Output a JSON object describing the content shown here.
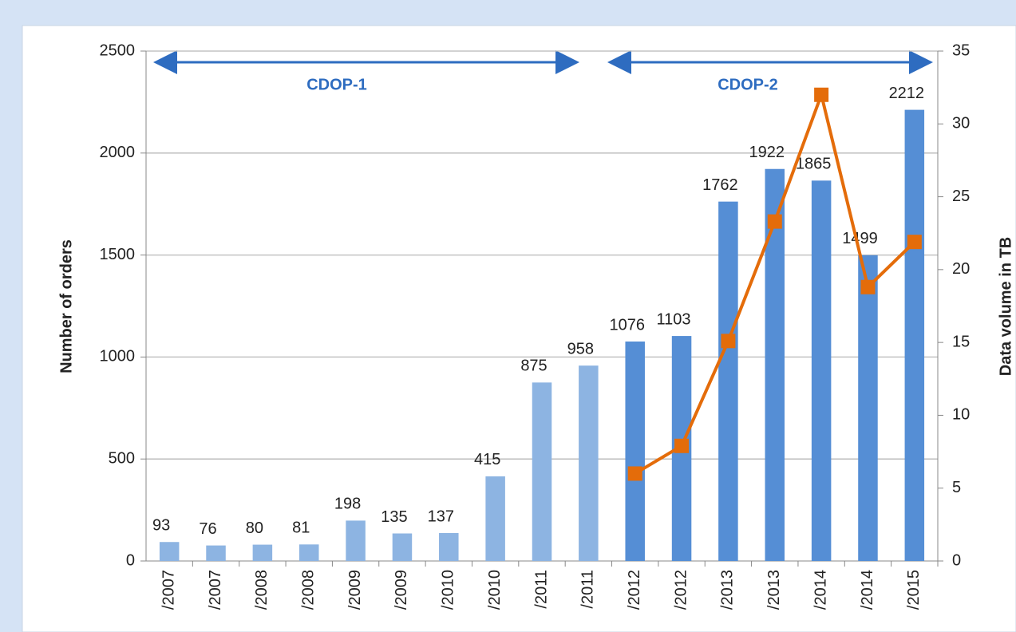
{
  "chart_data": {
    "type": "bar",
    "categories": [
      "/2007",
      "/2007",
      "/2008",
      "/2008",
      "/2009",
      "/2009",
      "/2010",
      "/2010",
      "/2011",
      "/2011",
      "/2012",
      "/2012",
      "/2013",
      "/2013",
      "/2014",
      "/2014",
      "/2015"
    ],
    "series": [
      {
        "type": "bar",
        "values": [
          93,
          76,
          80,
          81,
          198,
          135,
          137,
          415,
          875,
          958,
          1076,
          1103,
          1762,
          1922,
          1865,
          1499,
          2212
        ],
        "colors": [
          "#8db4e2",
          "#8db4e2",
          "#8db4e2",
          "#8db4e2",
          "#8db4e2",
          "#8db4e2",
          "#8db4e2",
          "#8db4e2",
          "#8db4e2",
          "#8db4e2",
          "#558ed5",
          "#558ed5",
          "#558ed5",
          "#558ed5",
          "#558ed5",
          "#558ed5",
          "#558ed5"
        ]
      },
      {
        "type": "line",
        "axis": "y2",
        "color": "#e46c0a",
        "values": [
          null,
          null,
          null,
          null,
          null,
          null,
          null,
          null,
          null,
          null,
          6,
          7.9,
          15.1,
          23.3,
          32,
          18.8,
          21.9
        ]
      }
    ],
    "ylabel": "Number of orders",
    "y2label": "Data volume in TB",
    "ylim": [
      0,
      2500
    ],
    "yticks": [
      0,
      500,
      1000,
      1500,
      2000,
      2500
    ],
    "y2lim": [
      0,
      35
    ],
    "y2ticks": [
      0,
      5,
      10,
      15,
      20,
      25,
      30,
      35
    ],
    "grid": true,
    "annotations": [
      "CDOP-1",
      "CDOP-2"
    ]
  }
}
